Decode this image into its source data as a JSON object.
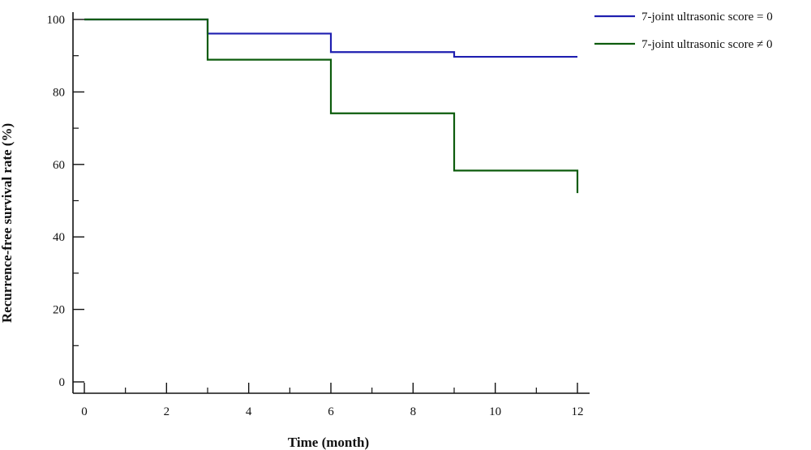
{
  "chart_data": {
    "type": "line",
    "step": true,
    "title": "",
    "xlabel": "Time (month)",
    "ylabel": "Recurrence-free survival rate (%)",
    "xlim": [
      0,
      12
    ],
    "ylim": [
      0,
      100
    ],
    "xticks": [
      0,
      2,
      4,
      6,
      8,
      10,
      12
    ],
    "yticks": [
      0,
      20,
      40,
      60,
      80,
      100
    ],
    "grid": false,
    "legend_position": "top-right",
    "series": [
      {
        "name": "7-joint ultrasonic score = 0",
        "color": "#1f1fb0",
        "x": [
          0,
          3,
          6,
          9,
          12
        ],
        "y": [
          100,
          96.1,
          91,
          89.7,
          89.7
        ]
      },
      {
        "name": "7-joint ultrasonic score ≠ 0",
        "color": "#0d5c0d",
        "x": [
          0,
          3,
          6,
          9,
          12,
          12
        ],
        "y": [
          100,
          88.9,
          74.1,
          58.3,
          58.3,
          52.1
        ]
      }
    ]
  }
}
